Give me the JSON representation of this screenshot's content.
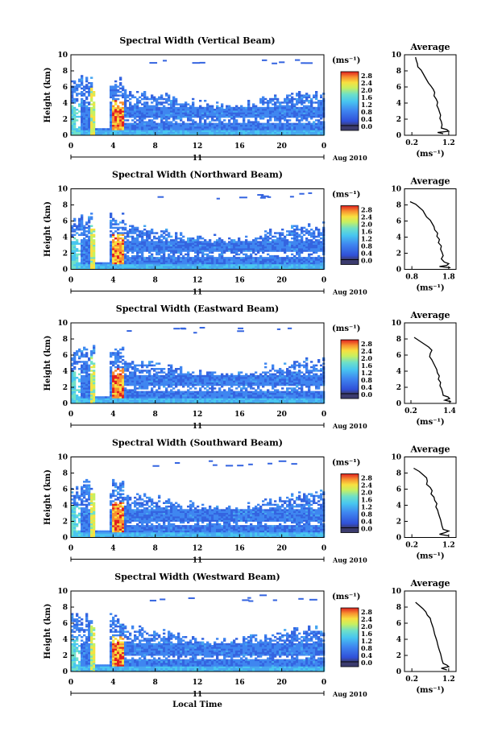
{
  "chart_data": [
    {
      "type": "heatmap",
      "title": "Spectral Width (Vertical Beam)",
      "ylabel": "Height (km)",
      "yticks": [
        "0",
        "2",
        "4",
        "6",
        "8",
        "10"
      ],
      "xticks": [
        "0",
        "4",
        "8",
        "12",
        "16",
        "20",
        "0"
      ],
      "date_day": "11",
      "date_label": "Aug 2010",
      "xlabel": "",
      "colorbar_unit": "(ms⁻¹)",
      "colorbar_ticks": [
        "0.0",
        "0.4",
        "0.8",
        "1.2",
        "1.6",
        "2.0",
        "2.4",
        "2.8"
      ],
      "avg_title": "Average",
      "avg_xticks": [
        "0.2",
        "1.2"
      ],
      "avg_xlabel": "(ms⁻¹)",
      "avg_yticks": [
        "0",
        "2",
        "4",
        "6",
        "8",
        "10"
      ],
      "avg_xlim": [
        0.0,
        1.4
      ],
      "avg_profile": [
        [
          0.3,
          9.7
        ],
        [
          0.32,
          9.3
        ],
        [
          0.35,
          8.9
        ],
        [
          0.36,
          8.5
        ],
        [
          0.45,
          8.1
        ],
        [
          0.5,
          7.7
        ],
        [
          0.55,
          7.3
        ],
        [
          0.6,
          6.9
        ],
        [
          0.65,
          6.5
        ],
        [
          0.72,
          6.1
        ],
        [
          0.78,
          5.7
        ],
        [
          0.82,
          5.3
        ],
        [
          0.8,
          4.9
        ],
        [
          0.86,
          4.5
        ],
        [
          0.9,
          4.1
        ],
        [
          0.88,
          3.7
        ],
        [
          0.92,
          3.3
        ],
        [
          0.95,
          2.9
        ],
        [
          0.98,
          2.5
        ],
        [
          0.96,
          2.1
        ],
        [
          1.0,
          1.7
        ],
        [
          1.02,
          1.3
        ],
        [
          1.0,
          0.9
        ],
        [
          1.15,
          0.7
        ],
        [
          1.2,
          0.5
        ],
        [
          0.9,
          0.35
        ],
        [
          1.05,
          0.2
        ]
      ]
    },
    {
      "type": "heatmap",
      "title": "Spectral Width (Northward Beam)",
      "ylabel": "Height (km)",
      "yticks": [
        "0",
        "2",
        "4",
        "6",
        "8",
        "10"
      ],
      "xticks": [
        "0",
        "4",
        "8",
        "12",
        "16",
        "20",
        "0"
      ],
      "date_day": "11",
      "date_label": "Aug 2010",
      "xlabel": "",
      "colorbar_unit": "(ms⁻¹)",
      "colorbar_ticks": [
        "0.0",
        "0.4",
        "0.8",
        "1.2",
        "1.6",
        "2.0",
        "2.4",
        "2.8"
      ],
      "avg_title": "Average",
      "avg_xticks": [
        "0.8",
        "1.8"
      ],
      "avg_xlabel": "(ms⁻¹)",
      "avg_yticks": [
        "0",
        "2",
        "4",
        "6",
        "8",
        "10"
      ],
      "avg_xlim": [
        0.6,
        2.0
      ],
      "avg_profile": [
        [
          0.75,
          8.4
        ],
        [
          0.9,
          8.1
        ],
        [
          1.0,
          7.7
        ],
        [
          1.1,
          7.3
        ],
        [
          1.15,
          6.9
        ],
        [
          1.2,
          6.5
        ],
        [
          1.3,
          6.1
        ],
        [
          1.35,
          5.7
        ],
        [
          1.4,
          5.3
        ],
        [
          1.42,
          4.9
        ],
        [
          1.5,
          4.5
        ],
        [
          1.48,
          4.1
        ],
        [
          1.55,
          3.7
        ],
        [
          1.52,
          3.3
        ],
        [
          1.6,
          2.9
        ],
        [
          1.58,
          2.5
        ],
        [
          1.62,
          2.1
        ],
        [
          1.65,
          1.7
        ],
        [
          1.6,
          1.3
        ],
        [
          1.68,
          0.9
        ],
        [
          1.8,
          0.7
        ],
        [
          1.75,
          0.5
        ],
        [
          1.55,
          0.35
        ],
        [
          1.85,
          0.2
        ]
      ]
    },
    {
      "type": "heatmap",
      "title": "Spectral Width (Eastward Beam)",
      "ylabel": "Height (km)",
      "yticks": [
        "0",
        "2",
        "4",
        "6",
        "8",
        "10"
      ],
      "xticks": [
        "0",
        "4",
        "8",
        "12",
        "16",
        "20",
        "0"
      ],
      "date_day": "11",
      "date_label": "Aug 2010",
      "xlabel": "",
      "colorbar_unit": "(ms⁻¹)",
      "colorbar_ticks": [
        "0.0",
        "0.4",
        "0.8",
        "1.2",
        "1.6",
        "2.0",
        "2.4",
        "2.8"
      ],
      "avg_title": "Average",
      "avg_xticks": [
        "0.2",
        "1.4"
      ],
      "avg_xlabel": "(ms⁻¹)",
      "avg_yticks": [
        "0",
        "2",
        "4",
        "6",
        "8",
        "10"
      ],
      "avg_xlim": [
        0.0,
        1.6
      ],
      "avg_profile": [
        [
          0.3,
          8.2
        ],
        [
          0.45,
          7.8
        ],
        [
          0.6,
          7.4
        ],
        [
          0.75,
          7.0
        ],
        [
          0.85,
          6.6
        ],
        [
          0.8,
          6.2
        ],
        [
          0.78,
          5.8
        ],
        [
          0.85,
          5.4
        ],
        [
          0.9,
          5.0
        ],
        [
          0.95,
          4.6
        ],
        [
          1.0,
          4.2
        ],
        [
          1.02,
          3.8
        ],
        [
          1.08,
          3.4
        ],
        [
          1.05,
          3.0
        ],
        [
          1.12,
          2.6
        ],
        [
          1.1,
          2.2
        ],
        [
          1.15,
          1.8
        ],
        [
          1.18,
          1.4
        ],
        [
          1.2,
          1.0
        ],
        [
          1.35,
          0.8
        ],
        [
          1.4,
          0.6
        ],
        [
          1.25,
          0.4
        ],
        [
          1.45,
          0.2
        ]
      ]
    },
    {
      "type": "heatmap",
      "title": "Spectral Width (Southward Beam)",
      "ylabel": "Height (km)",
      "yticks": [
        "0",
        "2",
        "4",
        "6",
        "8",
        "10"
      ],
      "xticks": [
        "0",
        "4",
        "8",
        "12",
        "16",
        "20",
        "0"
      ],
      "date_day": "11",
      "date_label": "Aug 2010",
      "xlabel": "",
      "colorbar_unit": "(ms⁻¹)",
      "colorbar_ticks": [
        "0.0",
        "0.4",
        "0.8",
        "1.2",
        "1.6",
        "2.0",
        "2.4",
        "2.8"
      ],
      "avg_title": "Average",
      "avg_xticks": [
        "0.2",
        "1.2"
      ],
      "avg_xlabel": "(ms⁻¹)",
      "avg_yticks": [
        "0",
        "2",
        "4",
        "6",
        "8",
        "10"
      ],
      "avg_xlim": [
        0.0,
        1.4
      ],
      "avg_profile": [
        [
          0.25,
          8.6
        ],
        [
          0.4,
          8.2
        ],
        [
          0.5,
          7.8
        ],
        [
          0.6,
          7.4
        ],
        [
          0.62,
          7.0
        ],
        [
          0.6,
          6.6
        ],
        [
          0.7,
          6.2
        ],
        [
          0.75,
          5.8
        ],
        [
          0.72,
          5.4
        ],
        [
          0.8,
          5.0
        ],
        [
          0.82,
          4.6
        ],
        [
          0.88,
          4.2
        ],
        [
          0.85,
          3.8
        ],
        [
          0.9,
          3.4
        ],
        [
          0.92,
          3.0
        ],
        [
          0.95,
          2.6
        ],
        [
          0.98,
          2.2
        ],
        [
          1.0,
          1.8
        ],
        [
          1.02,
          1.4
        ],
        [
          1.05,
          1.0
        ],
        [
          1.2,
          0.8
        ],
        [
          1.1,
          0.6
        ],
        [
          0.95,
          0.4
        ],
        [
          1.2,
          0.2
        ]
      ]
    },
    {
      "type": "heatmap",
      "title": "Spectral Width (Westward Beam)",
      "ylabel": "Height (km)",
      "yticks": [
        "0",
        "2",
        "4",
        "6",
        "8",
        "10"
      ],
      "xticks": [
        "0",
        "4",
        "8",
        "12",
        "16",
        "20",
        "0"
      ],
      "date_day": "11",
      "date_label": "Aug 2010",
      "xlabel": "Local Time",
      "colorbar_unit": "(ms⁻¹)",
      "colorbar_ticks": [
        "0.0",
        "0.4",
        "0.8",
        "1.2",
        "1.6",
        "2.0",
        "2.4",
        "2.8"
      ],
      "avg_title": "Average",
      "avg_xticks": [
        "0.2",
        "1.2"
      ],
      "avg_xlabel": "(ms⁻¹)",
      "avg_yticks": [
        "0",
        "2",
        "4",
        "6",
        "8",
        "10"
      ],
      "avg_xlim": [
        0.0,
        1.4
      ],
      "avg_profile": [
        [
          0.3,
          8.6
        ],
        [
          0.4,
          8.2
        ],
        [
          0.5,
          7.8
        ],
        [
          0.58,
          7.4
        ],
        [
          0.62,
          7.0
        ],
        [
          0.7,
          6.6
        ],
        [
          0.72,
          6.2
        ],
        [
          0.75,
          5.8
        ],
        [
          0.78,
          5.4
        ],
        [
          0.8,
          5.0
        ],
        [
          0.82,
          4.6
        ],
        [
          0.85,
          4.2
        ],
        [
          0.88,
          3.8
        ],
        [
          0.9,
          3.4
        ],
        [
          0.92,
          3.0
        ],
        [
          0.95,
          2.6
        ],
        [
          0.98,
          2.2
        ],
        [
          1.0,
          1.8
        ],
        [
          1.02,
          1.4
        ],
        [
          1.05,
          1.0
        ],
        [
          1.15,
          0.8
        ],
        [
          1.2,
          0.6
        ],
        [
          1.0,
          0.4
        ],
        [
          1.15,
          0.2
        ]
      ]
    }
  ]
}
